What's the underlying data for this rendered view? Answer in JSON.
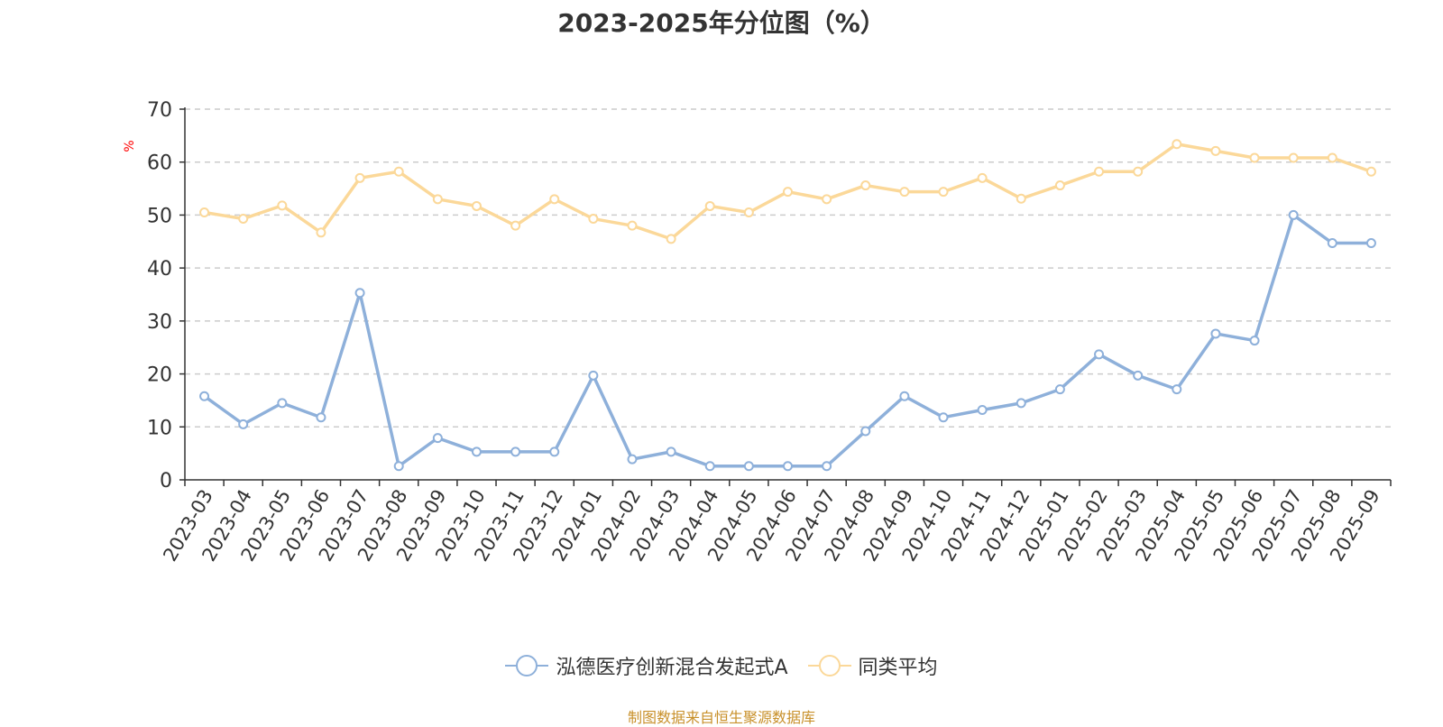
{
  "chart_data": {
    "type": "line",
    "title": "2023-2025年分位图（%）",
    "ylabel": "%",
    "ylim": [
      0,
      70
    ],
    "yticks": [
      0,
      10,
      20,
      30,
      40,
      50,
      60,
      70
    ],
    "grid": true,
    "legend_position": "bottom",
    "categories": [
      "2023-03",
      "2023-04",
      "2023-05",
      "2023-06",
      "2023-07",
      "2023-08",
      "2023-09",
      "2023-10",
      "2023-11",
      "2023-12",
      "2024-01",
      "2024-02",
      "2024-03",
      "2024-04",
      "2024-05",
      "2024-06",
      "2024-07",
      "2024-08",
      "2024-09",
      "2024-10",
      "2024-11",
      "2024-12",
      "2025-01",
      "2025-02",
      "2025-03",
      "2025-04",
      "2025-05",
      "2025-06",
      "2025-07",
      "2025-08",
      "2025-09"
    ],
    "series": [
      {
        "name": "泓德医疗创新混合发起式A",
        "color": "#8eb0da",
        "values": [
          15.8,
          10.5,
          14.5,
          11.8,
          35.3,
          2.6,
          7.9,
          5.3,
          5.3,
          5.3,
          19.7,
          3.9,
          5.3,
          2.6,
          2.6,
          2.6,
          2.6,
          9.2,
          15.8,
          11.8,
          13.2,
          14.5,
          17.1,
          23.7,
          19.7,
          17.1,
          27.6,
          26.3,
          50.0,
          44.7,
          44.7
        ]
      },
      {
        "name": "同类平均",
        "color": "#fbd899",
        "values": [
          50.5,
          49.3,
          51.8,
          46.7,
          57.0,
          58.2,
          53.0,
          51.7,
          48.0,
          53.0,
          49.3,
          48.0,
          45.5,
          51.7,
          50.5,
          54.4,
          53.0,
          55.6,
          54.4,
          54.4,
          57.0,
          53.1,
          55.6,
          58.2,
          58.2,
          63.4,
          62.1,
          60.8,
          60.8,
          60.8,
          58.2
        ]
      }
    ]
  },
  "source_note": "制图数据来自恒生聚源数据库"
}
